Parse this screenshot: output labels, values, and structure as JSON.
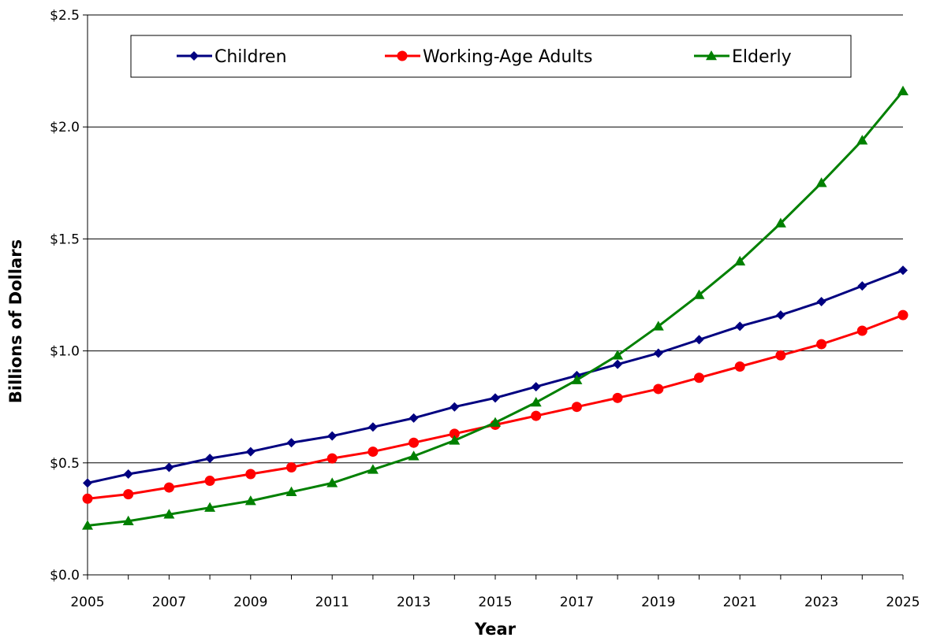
{
  "chart_data": {
    "type": "line",
    "title": "",
    "xlabel": "Year",
    "ylabel": "Billions of Dollars",
    "x": [
      2005,
      2006,
      2007,
      2008,
      2009,
      2010,
      2011,
      2012,
      2013,
      2014,
      2015,
      2016,
      2017,
      2018,
      2019,
      2020,
      2021,
      2022,
      2023,
      2024,
      2025
    ],
    "xtick_labels": [
      "2005",
      "2007",
      "2009",
      "2011",
      "2013",
      "2015",
      "2017",
      "2019",
      "2021",
      "2023",
      "2025"
    ],
    "ytick_labels": [
      "$0.0",
      "$0.5",
      "$1.0",
      "$1.5",
      "$2.0",
      "$2.5"
    ],
    "ylim": [
      0,
      2.5
    ],
    "xlim": [
      2005,
      2025
    ],
    "grid": "horizontal",
    "legend_position": "top",
    "series": [
      {
        "name": "Children",
        "color": "#000080",
        "marker": "diamond",
        "values": [
          0.41,
          0.45,
          0.48,
          0.52,
          0.55,
          0.59,
          0.62,
          0.66,
          0.7,
          0.75,
          0.79,
          0.84,
          0.89,
          0.94,
          0.99,
          1.05,
          1.11,
          1.16,
          1.22,
          1.29,
          1.36
        ]
      },
      {
        "name": "Working-Age Adults",
        "color": "#ff0000",
        "marker": "circle",
        "values": [
          0.34,
          0.36,
          0.39,
          0.42,
          0.45,
          0.48,
          0.52,
          0.55,
          0.59,
          0.63,
          0.67,
          0.71,
          0.75,
          0.79,
          0.83,
          0.88,
          0.93,
          0.98,
          1.03,
          1.09,
          1.16
        ]
      },
      {
        "name": "Elderly",
        "color": "#008000",
        "marker": "triangle",
        "values": [
          0.22,
          0.24,
          0.27,
          0.3,
          0.33,
          0.37,
          0.41,
          0.47,
          0.53,
          0.6,
          0.68,
          0.77,
          0.87,
          0.98,
          1.11,
          1.25,
          1.4,
          1.57,
          1.75,
          1.94,
          2.16
        ]
      }
    ]
  }
}
